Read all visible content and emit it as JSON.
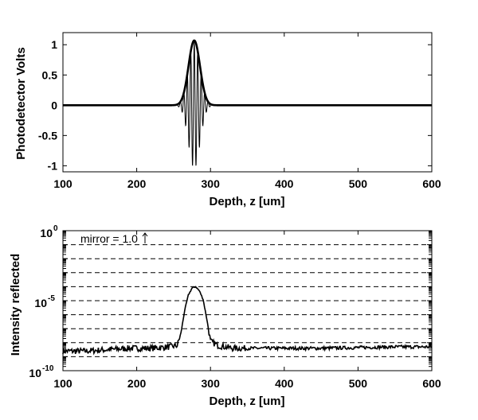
{
  "chart_data": [
    {
      "type": "line",
      "title": "",
      "xlabel": "Depth, z [um]",
      "ylabel": "Photodetector Volts",
      "xlim": [
        100,
        600
      ],
      "ylim": [
        -1.1,
        1.2
      ],
      "x_ticks": [
        "100",
        "200",
        "300",
        "400",
        "500",
        "600"
      ],
      "y_ticks": [
        "-1",
        "-0.5",
        "0",
        "0.5",
        "1"
      ],
      "grid": false,
      "series": [
        {
          "kind": "interference-fringe",
          "center": 278,
          "width": 11,
          "period": 4.7,
          "amplitude": 1.05
        },
        {
          "kind": "envelope",
          "center": 278,
          "width": 11,
          "amplitude": 1.07
        }
      ]
    },
    {
      "type": "line",
      "title": "",
      "xlabel": "Depth, z [um]",
      "ylabel": "Intensity reflected",
      "yscale": "log",
      "xlim": [
        100,
        600
      ],
      "ylim": [
        1e-10,
        1
      ],
      "x_ticks": [
        "100",
        "200",
        "300",
        "400",
        "500",
        "600"
      ],
      "y_ticks": [
        "10^-10",
        "10^-5",
        "10^0"
      ],
      "grid": "horizontal-dashed",
      "annotation": "mirror = 1.0",
      "series": [
        {
          "kind": "reflectance",
          "x": [
            100,
            130,
            160,
            190,
            220,
            245,
            255,
            260,
            265,
            270,
            275,
            280,
            285,
            290,
            295,
            300,
            310,
            330,
            360,
            400,
            450,
            500,
            550,
            600
          ],
          "log10_y": [
            -8.6,
            -8.6,
            -8.5,
            -8.4,
            -8.4,
            -8.3,
            -8.2,
            -7.3,
            -5.7,
            -4.6,
            -4.1,
            -4.0,
            -4.3,
            -4.9,
            -6.3,
            -7.9,
            -8.2,
            -8.4,
            -8.4,
            -8.4,
            -8.4,
            -8.35,
            -8.3,
            -8.3
          ]
        }
      ]
    }
  ]
}
